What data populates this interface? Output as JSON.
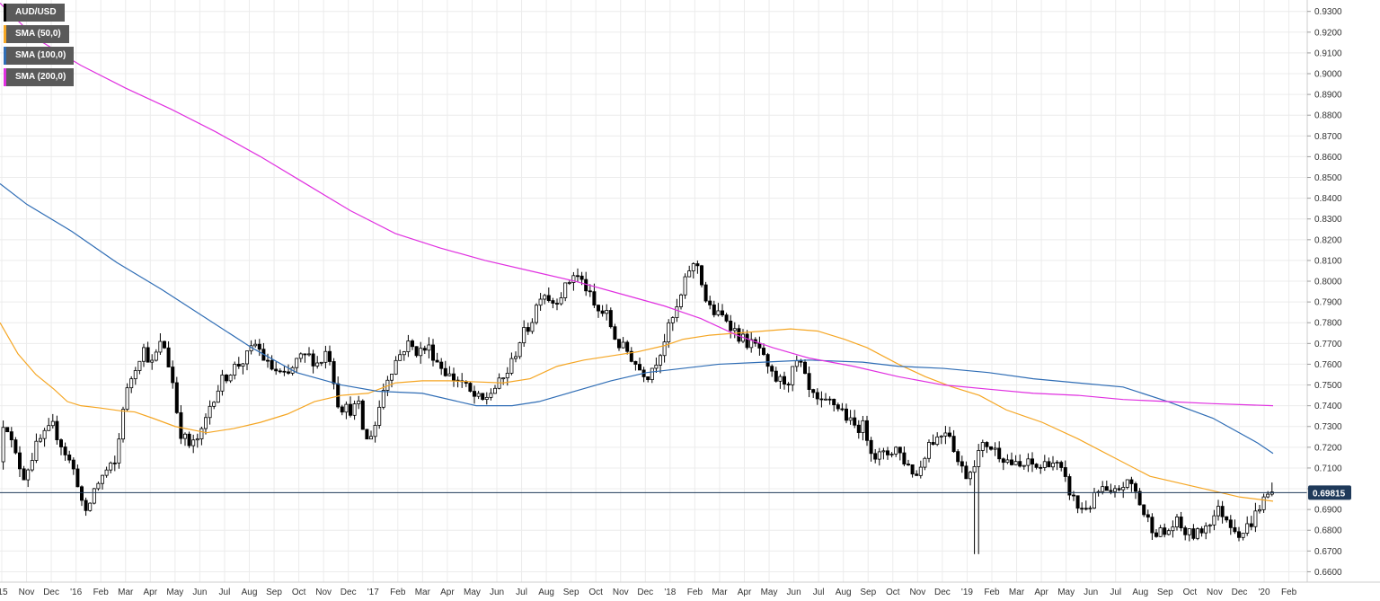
{
  "chart_data": {
    "type": "candlestick",
    "title": "",
    "symbol": "AUD/USD",
    "timeframe": "weekly",
    "ylim": [
      0.655,
      0.9355
    ],
    "y_ticks": [
      "0.9300",
      "0.9200",
      "0.9100",
      "0.9000",
      "0.8900",
      "0.8800",
      "0.8700",
      "0.8600",
      "0.8500",
      "0.8400",
      "0.8300",
      "0.8200",
      "0.8100",
      "0.8000",
      "0.7900",
      "0.7800",
      "0.7700",
      "0.7600",
      "0.7500",
      "0.7400",
      "0.7300",
      "0.7200",
      "0.7100",
      "0.7000",
      "0.6900",
      "0.6800",
      "0.6700",
      "0.6600"
    ],
    "x_ticks": [
      "'15",
      "Nov",
      "Dec",
      "'16",
      "Feb",
      "Mar",
      "Apr",
      "May",
      "Jun",
      "Jul",
      "Aug",
      "Sep",
      "Oct",
      "Nov",
      "Dec",
      "'17",
      "Feb",
      "Mar",
      "Apr",
      "May",
      "Jun",
      "Jul",
      "Aug",
      "Sep",
      "Oct",
      "Nov",
      "Dec",
      "'18",
      "Feb",
      "Mar",
      "Apr",
      "May",
      "Jun",
      "Jul",
      "Aug",
      "Sep",
      "Oct",
      "Nov",
      "Dec",
      "'19",
      "Feb",
      "Mar",
      "Apr",
      "May",
      "Jun",
      "Jul",
      "Aug",
      "Sep",
      "Oct",
      "Nov",
      "Dec",
      "'20",
      "Feb"
    ],
    "last_price": 0.69815,
    "last_price_label": "0.69815",
    "grid": true,
    "legend_position": "top-left",
    "colors": {
      "up": "#ffffff",
      "down": "#000000",
      "wick": "#000000",
      "sma50": "#f5a623",
      "sma100": "#2f6db5",
      "sma200": "#e030e0",
      "price_line": "#1f3a5a",
      "price_tag": "#1f3a5a",
      "grid": "#ececec"
    },
    "series": [
      {
        "name": "AUD/USD",
        "kind": "candles"
      },
      {
        "name": "SMA (50,0)",
        "kind": "line",
        "color": "#f5a623",
        "points": [
          [
            0,
            0.78
          ],
          [
            20,
            0.765
          ],
          [
            40,
            0.755
          ],
          [
            60,
            0.748
          ],
          [
            75,
            0.742
          ],
          [
            90,
            0.74
          ],
          [
            110,
            0.739
          ],
          [
            135,
            0.7375
          ],
          [
            150,
            0.737
          ],
          [
            170,
            0.734
          ],
          [
            195,
            0.73
          ],
          [
            230,
            0.727
          ],
          [
            260,
            0.729
          ],
          [
            290,
            0.732
          ],
          [
            320,
            0.736
          ],
          [
            350,
            0.742
          ],
          [
            380,
            0.745
          ],
          [
            410,
            0.746
          ],
          [
            440,
            0.751
          ],
          [
            470,
            0.752
          ],
          [
            500,
            0.752
          ],
          [
            530,
            0.7515
          ],
          [
            560,
            0.751
          ],
          [
            590,
            0.753
          ],
          [
            620,
            0.759
          ],
          [
            650,
            0.762
          ],
          [
            680,
            0.764
          ],
          [
            710,
            0.766
          ],
          [
            740,
            0.769
          ],
          [
            760,
            0.772
          ],
          [
            790,
            0.774
          ],
          [
            820,
            0.775
          ],
          [
            850,
            0.776
          ],
          [
            880,
            0.777
          ],
          [
            910,
            0.776
          ],
          [
            940,
            0.772
          ],
          [
            965,
            0.768
          ],
          [
            1000,
            0.76
          ],
          [
            1030,
            0.754
          ],
          [
            1060,
            0.749
          ],
          [
            1090,
            0.745
          ],
          [
            1120,
            0.738
          ],
          [
            1160,
            0.732
          ],
          [
            1200,
            0.724
          ],
          [
            1240,
            0.715
          ],
          [
            1280,
            0.706
          ],
          [
            1320,
            0.702
          ],
          [
            1350,
            0.699
          ],
          [
            1380,
            0.696
          ],
          [
            1417,
            0.694
          ]
        ]
      },
      {
        "name": "SMA (100,0)",
        "kind": "line",
        "color": "#2f6db5",
        "points": [
          [
            0,
            0.847
          ],
          [
            30,
            0.837
          ],
          [
            80,
            0.824
          ],
          [
            130,
            0.809
          ],
          [
            180,
            0.796
          ],
          [
            230,
            0.782
          ],
          [
            280,
            0.768
          ],
          [
            330,
            0.756
          ],
          [
            380,
            0.75
          ],
          [
            420,
            0.747
          ],
          [
            470,
            0.746
          ],
          [
            530,
            0.74
          ],
          [
            570,
            0.74
          ],
          [
            600,
            0.742
          ],
          [
            640,
            0.747
          ],
          [
            680,
            0.752
          ],
          [
            720,
            0.756
          ],
          [
            760,
            0.758
          ],
          [
            800,
            0.76
          ],
          [
            850,
            0.761
          ],
          [
            900,
            0.762
          ],
          [
            960,
            0.761
          ],
          [
            1000,
            0.759
          ],
          [
            1050,
            0.758
          ],
          [
            1100,
            0.756
          ],
          [
            1150,
            0.753
          ],
          [
            1200,
            0.751
          ],
          [
            1250,
            0.749
          ],
          [
            1300,
            0.742
          ],
          [
            1350,
            0.734
          ],
          [
            1400,
            0.722
          ],
          [
            1417,
            0.717
          ]
        ]
      },
      {
        "name": "SMA (200,0)",
        "kind": "line",
        "color": "#e030e0",
        "points": [
          [
            0,
            0.934
          ],
          [
            40,
            0.917
          ],
          [
            90,
            0.904
          ],
          [
            140,
            0.893
          ],
          [
            190,
            0.883
          ],
          [
            240,
            0.872
          ],
          [
            290,
            0.86
          ],
          [
            340,
            0.847
          ],
          [
            390,
            0.834
          ],
          [
            440,
            0.823
          ],
          [
            490,
            0.816
          ],
          [
            540,
            0.81
          ],
          [
            590,
            0.805
          ],
          [
            640,
            0.8
          ],
          [
            690,
            0.794
          ],
          [
            740,
            0.788
          ],
          [
            780,
            0.782
          ],
          [
            820,
            0.774
          ],
          [
            860,
            0.768
          ],
          [
            900,
            0.763
          ],
          [
            950,
            0.759
          ],
          [
            1000,
            0.754
          ],
          [
            1050,
            0.75
          ],
          [
            1100,
            0.748
          ],
          [
            1150,
            0.746
          ],
          [
            1200,
            0.745
          ],
          [
            1250,
            0.743
          ],
          [
            1300,
            0.742
          ],
          [
            1350,
            0.741
          ],
          [
            1417,
            0.74
          ]
        ]
      }
    ]
  }
}
